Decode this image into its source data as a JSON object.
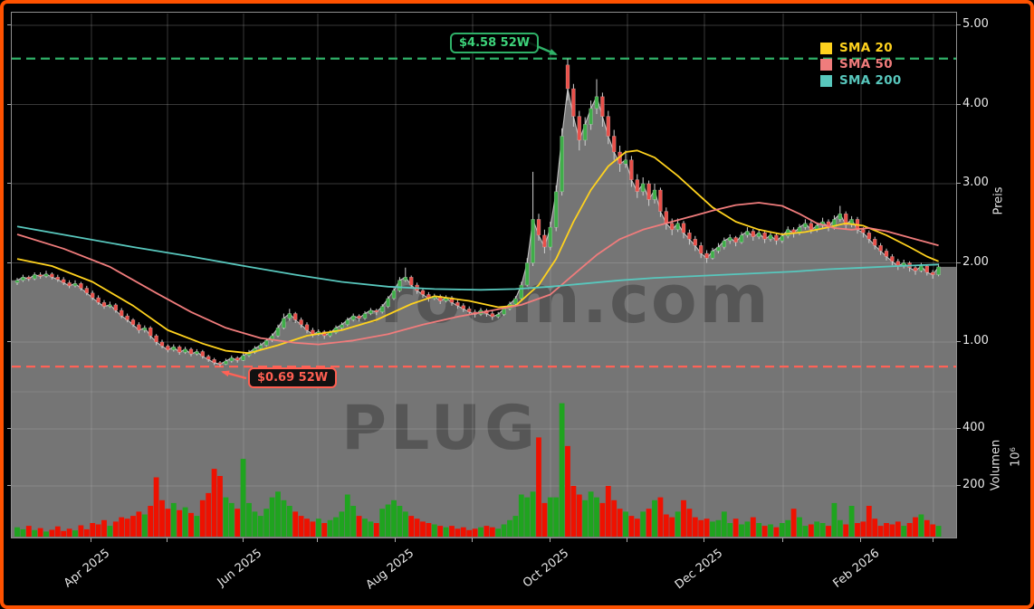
{
  "watermark": {
    "site": "chartroom.com",
    "ticker": "PLUG"
  },
  "legend": {
    "items": [
      {
        "label": "SMA 20",
        "color": "#ffd21e"
      },
      {
        "label": "SMA 50",
        "color": "#f07c7c"
      },
      {
        "label": "SMA 200",
        "color": "#58c7bd"
      }
    ]
  },
  "annotations": {
    "high_label": "$4.58 52W",
    "low_label": "$0.69 52W"
  },
  "axes": {
    "price_label": "Preis",
    "volume_label": "Volumen",
    "volume_unit": "10⁶",
    "price_ticks": [
      {
        "value": 5,
        "label": "5.00"
      },
      {
        "value": 4,
        "label": "4.00"
      },
      {
        "value": 3,
        "label": "3.00"
      },
      {
        "value": 2,
        "label": "2.00"
      },
      {
        "value": 1,
        "label": "1.00"
      }
    ],
    "volume_ticks": [
      {
        "value": 400,
        "label": "400"
      },
      {
        "value": 200,
        "label": "200"
      }
    ],
    "x_ticks": [
      {
        "x": 88,
        "label": "Apr 2025"
      },
      {
        "x": 172,
        "label": ""
      },
      {
        "x": 256,
        "label": "Jun 2025"
      },
      {
        "x": 338,
        "label": ""
      },
      {
        "x": 424,
        "label": "Aug 2025"
      },
      {
        "x": 509,
        "label": ""
      },
      {
        "x": 595,
        "label": "Oct 2025"
      },
      {
        "x": 680,
        "label": ""
      },
      {
        "x": 765,
        "label": "Dec 2025"
      },
      {
        "x": 852,
        "label": ""
      },
      {
        "x": 938,
        "label": "Feb 2026"
      },
      {
        "x": 1018,
        "label": ""
      }
    ]
  },
  "colors": {
    "up": "#3fae49",
    "down": "#e8504a",
    "vol_up": "#1fa41f",
    "vol_down": "#ee1100",
    "fill": "#757575",
    "wick": "#cfcfcf",
    "sma20": "#ffd21e",
    "sma50": "#f07c7c",
    "sma200": "#58c7bd",
    "dash_high": "#2fb168",
    "dash_low": "#ff6256",
    "grid": "rgba(185,185,185,0.30)",
    "border": "#ff5200"
  },
  "chart_data": {
    "type": "candlestick",
    "symbol": "PLUG",
    "price_axis_label": "Preis",
    "volume_axis_label": "Volumen",
    "price_axis_ticks": [
      1.0,
      2.0,
      3.0,
      4.0,
      5.0
    ],
    "volume_axis_ticks_millions": [
      200,
      400
    ],
    "x_axis_months": [
      "Apr 2025",
      "Jun 2025",
      "Aug 2025",
      "Oct 2025",
      "Dec 2025",
      "Feb 2026"
    ],
    "high_52w": 4.58,
    "low_52w": 0.69,
    "legend": [
      "SMA 20",
      "SMA 50",
      "SMA 200"
    ],
    "candles_ohlc": [
      [
        1.75,
        1.81,
        1.72,
        1.78
      ],
      [
        1.78,
        1.85,
        1.76,
        1.82
      ],
      [
        1.82,
        1.84,
        1.77,
        1.8
      ],
      [
        1.8,
        1.88,
        1.78,
        1.85
      ],
      [
        1.85,
        1.88,
        1.8,
        1.83
      ],
      [
        1.83,
        1.9,
        1.81,
        1.86
      ],
      [
        1.86,
        1.88,
        1.79,
        1.82
      ],
      [
        1.82,
        1.85,
        1.76,
        1.79
      ],
      [
        1.79,
        1.82,
        1.72,
        1.75
      ],
      [
        1.75,
        1.78,
        1.68,
        1.71
      ],
      [
        1.71,
        1.78,
        1.69,
        1.74
      ],
      [
        1.74,
        1.76,
        1.65,
        1.68
      ],
      [
        1.68,
        1.71,
        1.59,
        1.62
      ],
      [
        1.62,
        1.65,
        1.53,
        1.56
      ],
      [
        1.56,
        1.59,
        1.47,
        1.5
      ],
      [
        1.5,
        1.53,
        1.42,
        1.45
      ],
      [
        1.45,
        1.51,
        1.43,
        1.47
      ],
      [
        1.47,
        1.49,
        1.37,
        1.4
      ],
      [
        1.4,
        1.43,
        1.3,
        1.33
      ],
      [
        1.33,
        1.36,
        1.25,
        1.28
      ],
      [
        1.28,
        1.3,
        1.19,
        1.22
      ],
      [
        1.22,
        1.25,
        1.11,
        1.15
      ],
      [
        1.15,
        1.21,
        1.12,
        1.18
      ],
      [
        1.18,
        1.2,
        1.04,
        1.08
      ],
      [
        1.08,
        1.1,
        0.96,
        1.0
      ],
      [
        1.0,
        1.03,
        0.92,
        0.95
      ],
      [
        0.95,
        0.97,
        0.87,
        0.9
      ],
      [
        0.9,
        0.97,
        0.88,
        0.94
      ],
      [
        0.94,
        0.96,
        0.84,
        0.87
      ],
      [
        0.87,
        0.94,
        0.85,
        0.91
      ],
      [
        0.91,
        0.93,
        0.82,
        0.85
      ],
      [
        0.85,
        0.91,
        0.83,
        0.88
      ],
      [
        0.88,
        0.9,
        0.79,
        0.82
      ],
      [
        0.82,
        0.84,
        0.75,
        0.78
      ],
      [
        0.78,
        0.8,
        0.71,
        0.74
      ],
      [
        0.74,
        0.76,
        0.69,
        0.72
      ],
      [
        0.72,
        0.79,
        0.71,
        0.76
      ],
      [
        0.76,
        0.83,
        0.74,
        0.8
      ],
      [
        0.8,
        0.82,
        0.74,
        0.77
      ],
      [
        0.77,
        0.86,
        0.76,
        0.83
      ],
      [
        0.83,
        0.9,
        0.81,
        0.87
      ],
      [
        0.87,
        0.95,
        0.85,
        0.92
      ],
      [
        0.92,
        0.99,
        0.9,
        0.96
      ],
      [
        0.96,
        1.05,
        0.94,
        1.02
      ],
      [
        1.02,
        1.11,
        1.0,
        1.08
      ],
      [
        1.08,
        1.22,
        1.06,
        1.18
      ],
      [
        1.18,
        1.36,
        1.16,
        1.3
      ],
      [
        1.3,
        1.42,
        1.27,
        1.36
      ],
      [
        1.36,
        1.38,
        1.24,
        1.28
      ],
      [
        1.28,
        1.31,
        1.18,
        1.22
      ],
      [
        1.22,
        1.25,
        1.11,
        1.15
      ],
      [
        1.15,
        1.18,
        1.06,
        1.1
      ],
      [
        1.1,
        1.16,
        1.08,
        1.13
      ],
      [
        1.13,
        1.15,
        1.04,
        1.08
      ],
      [
        1.08,
        1.15,
        1.06,
        1.12
      ],
      [
        1.12,
        1.21,
        1.1,
        1.18
      ],
      [
        1.18,
        1.25,
        1.16,
        1.22
      ],
      [
        1.22,
        1.31,
        1.2,
        1.28
      ],
      [
        1.28,
        1.36,
        1.26,
        1.33
      ],
      [
        1.33,
        1.35,
        1.26,
        1.3
      ],
      [
        1.3,
        1.39,
        1.28,
        1.36
      ],
      [
        1.36,
        1.43,
        1.34,
        1.4
      ],
      [
        1.4,
        1.42,
        1.34,
        1.38
      ],
      [
        1.38,
        1.48,
        1.36,
        1.45
      ],
      [
        1.45,
        1.58,
        1.43,
        1.55
      ],
      [
        1.55,
        1.68,
        1.53,
        1.65
      ],
      [
        1.65,
        1.82,
        1.63,
        1.78
      ],
      [
        1.78,
        1.94,
        1.76,
        1.82
      ],
      [
        1.82,
        1.84,
        1.68,
        1.72
      ],
      [
        1.72,
        1.75,
        1.61,
        1.65
      ],
      [
        1.65,
        1.68,
        1.56,
        1.6
      ],
      [
        1.6,
        1.63,
        1.51,
        1.55
      ],
      [
        1.55,
        1.61,
        1.53,
        1.58
      ],
      [
        1.58,
        1.6,
        1.48,
        1.52
      ],
      [
        1.52,
        1.59,
        1.5,
        1.56
      ],
      [
        1.56,
        1.58,
        1.46,
        1.5
      ],
      [
        1.5,
        1.53,
        1.42,
        1.46
      ],
      [
        1.46,
        1.49,
        1.38,
        1.42
      ],
      [
        1.42,
        1.45,
        1.34,
        1.38
      ],
      [
        1.38,
        1.41,
        1.31,
        1.35
      ],
      [
        1.35,
        1.43,
        1.33,
        1.4
      ],
      [
        1.4,
        1.42,
        1.32,
        1.36
      ],
      [
        1.36,
        1.39,
        1.28,
        1.32
      ],
      [
        1.32,
        1.38,
        1.3,
        1.35
      ],
      [
        1.35,
        1.45,
        1.33,
        1.42
      ],
      [
        1.42,
        1.51,
        1.4,
        1.48
      ],
      [
        1.48,
        1.58,
        1.46,
        1.55
      ],
      [
        1.55,
        1.76,
        1.53,
        1.72
      ],
      [
        1.72,
        2.06,
        1.7,
        2.0
      ],
      [
        2.0,
        3.15,
        1.96,
        2.55
      ],
      [
        2.55,
        2.62,
        2.28,
        2.35
      ],
      [
        2.35,
        2.42,
        2.12,
        2.2
      ],
      [
        2.2,
        2.52,
        2.16,
        2.45
      ],
      [
        2.45,
        2.98,
        2.4,
        2.9
      ],
      [
        2.9,
        3.7,
        2.85,
        3.6
      ],
      [
        4.5,
        4.58,
        4.05,
        4.2
      ],
      [
        4.2,
        4.26,
        3.72,
        3.85
      ],
      [
        3.85,
        3.92,
        3.42,
        3.55
      ],
      [
        3.55,
        3.84,
        3.48,
        3.75
      ],
      [
        3.75,
        4.05,
        3.68,
        3.95
      ],
      [
        3.95,
        4.32,
        3.88,
        4.1
      ],
      [
        4.1,
        4.15,
        3.72,
        3.85
      ],
      [
        3.85,
        3.92,
        3.5,
        3.6
      ],
      [
        3.6,
        3.68,
        3.3,
        3.4
      ],
      [
        3.4,
        3.48,
        3.15,
        3.25
      ],
      [
        3.25,
        3.42,
        3.2,
        3.3
      ],
      [
        3.3,
        3.35,
        2.96,
        3.05
      ],
      [
        3.05,
        3.12,
        2.82,
        2.9
      ],
      [
        2.9,
        3.08,
        2.85,
        3.0
      ],
      [
        3.0,
        3.04,
        2.72,
        2.8
      ],
      [
        2.8,
        3.0,
        2.75,
        2.92
      ],
      [
        2.92,
        2.95,
        2.58,
        2.65
      ],
      [
        2.65,
        2.7,
        2.42,
        2.5
      ],
      [
        2.5,
        2.56,
        2.35,
        2.42
      ],
      [
        2.42,
        2.56,
        2.39,
        2.5
      ],
      [
        2.5,
        2.53,
        2.31,
        2.38
      ],
      [
        2.38,
        2.42,
        2.23,
        2.3
      ],
      [
        2.3,
        2.34,
        2.15,
        2.22
      ],
      [
        2.22,
        2.26,
        2.06,
        2.12
      ],
      [
        2.12,
        2.16,
        2.0,
        2.06
      ],
      [
        2.06,
        2.19,
        2.04,
        2.15
      ],
      [
        2.15,
        2.25,
        2.12,
        2.2
      ],
      [
        2.2,
        2.32,
        2.17,
        2.28
      ],
      [
        2.28,
        2.36,
        2.24,
        2.32
      ],
      [
        2.32,
        2.34,
        2.21,
        2.26
      ],
      [
        2.26,
        2.39,
        2.24,
        2.35
      ],
      [
        2.35,
        2.45,
        2.32,
        2.4
      ],
      [
        2.4,
        2.43,
        2.28,
        2.33
      ],
      [
        2.33,
        2.42,
        2.3,
        2.38
      ],
      [
        2.38,
        2.41,
        2.25,
        2.3
      ],
      [
        2.3,
        2.39,
        2.27,
        2.35
      ],
      [
        2.35,
        2.38,
        2.23,
        2.28
      ],
      [
        2.28,
        2.38,
        2.25,
        2.34
      ],
      [
        2.34,
        2.46,
        2.31,
        2.42
      ],
      [
        2.42,
        2.45,
        2.32,
        2.38
      ],
      [
        2.38,
        2.49,
        2.35,
        2.45
      ],
      [
        2.45,
        2.55,
        2.42,
        2.5
      ],
      [
        2.5,
        2.53,
        2.37,
        2.42
      ],
      [
        2.42,
        2.51,
        2.39,
        2.47
      ],
      [
        2.47,
        2.57,
        2.44,
        2.52
      ],
      [
        2.52,
        2.55,
        2.4,
        2.45
      ],
      [
        2.45,
        2.6,
        2.42,
        2.55
      ],
      [
        2.55,
        2.72,
        2.52,
        2.62
      ],
      [
        2.62,
        2.65,
        2.43,
        2.48
      ],
      [
        2.48,
        2.59,
        2.45,
        2.55
      ],
      [
        2.55,
        2.58,
        2.37,
        2.42
      ],
      [
        2.42,
        2.45,
        2.32,
        2.38
      ],
      [
        2.38,
        2.41,
        2.25,
        2.3
      ],
      [
        2.3,
        2.33,
        2.17,
        2.22
      ],
      [
        2.22,
        2.25,
        2.1,
        2.15
      ],
      [
        2.15,
        2.18,
        2.03,
        2.08
      ],
      [
        2.08,
        2.11,
        1.97,
        2.02
      ],
      [
        2.02,
        2.05,
        1.91,
        1.96
      ],
      [
        1.96,
        2.04,
        1.93,
        2.0
      ],
      [
        2.0,
        2.02,
        1.89,
        1.94
      ],
      [
        1.94,
        1.97,
        1.85,
        1.9
      ],
      [
        1.9,
        2.0,
        1.88,
        1.96
      ],
      [
        1.96,
        1.98,
        1.84,
        1.88
      ],
      [
        1.88,
        1.91,
        1.8,
        1.85
      ],
      [
        1.85,
        1.99,
        1.83,
        1.95
      ]
    ],
    "volumes_millions": [
      55,
      48,
      60,
      45,
      52,
      40,
      46,
      58,
      42,
      50,
      44,
      62,
      48,
      70,
      65,
      80,
      60,
      75,
      90,
      85,
      95,
      110,
      100,
      130,
      230,
      150,
      120,
      140,
      115,
      125,
      105,
      95,
      150,
      175,
      260,
      235,
      160,
      140,
      120,
      295,
      140,
      110,
      95,
      120,
      160,
      180,
      150,
      130,
      110,
      95,
      85,
      75,
      85,
      70,
      80,
      90,
      110,
      170,
      130,
      95,
      85,
      75,
      70,
      120,
      135,
      150,
      130,
      110,
      95,
      85,
      75,
      70,
      65,
      60,
      55,
      60,
      50,
      55,
      45,
      50,
      55,
      60,
      55,
      50,
      65,
      80,
      95,
      170,
      160,
      180,
      370,
      140,
      160,
      160,
      490,
      340,
      200,
      170,
      150,
      180,
      160,
      140,
      200,
      150,
      120,
      110,
      95,
      85,
      110,
      120,
      150,
      160,
      100,
      90,
      110,
      150,
      120,
      90,
      80,
      85,
      75,
      80,
      110,
      70,
      85,
      65,
      75,
      90,
      70,
      60,
      65,
      55,
      70,
      80,
      120,
      90,
      60,
      65,
      75,
      70,
      60,
      140,
      80,
      65,
      130,
      70,
      75,
      130,
      85,
      60,
      70,
      65,
      75,
      60,
      70,
      90,
      100,
      80,
      65,
      60
    ],
    "sma20_keypoints": [
      [
        0,
        2.05
      ],
      [
        6,
        1.96
      ],
      [
        13,
        1.76
      ],
      [
        20,
        1.46
      ],
      [
        26,
        1.15
      ],
      [
        32,
        0.98
      ],
      [
        36,
        0.89
      ],
      [
        40,
        0.86
      ],
      [
        45,
        0.96
      ],
      [
        50,
        1.08
      ],
      [
        56,
        1.15
      ],
      [
        62,
        1.28
      ],
      [
        68,
        1.48
      ],
      [
        72,
        1.58
      ],
      [
        78,
        1.52
      ],
      [
        83,
        1.44
      ],
      [
        86,
        1.46
      ],
      [
        90,
        1.72
      ],
      [
        93,
        2.05
      ],
      [
        96,
        2.52
      ],
      [
        99,
        2.92
      ],
      [
        102,
        3.22
      ],
      [
        105,
        3.4
      ],
      [
        107,
        3.42
      ],
      [
        110,
        3.33
      ],
      [
        114,
        3.1
      ],
      [
        117,
        2.9
      ],
      [
        120,
        2.7
      ],
      [
        124,
        2.52
      ],
      [
        128,
        2.42
      ],
      [
        132,
        2.36
      ],
      [
        136,
        2.39
      ],
      [
        140,
        2.45
      ],
      [
        143,
        2.5
      ],
      [
        146,
        2.47
      ],
      [
        150,
        2.35
      ],
      [
        154,
        2.2
      ],
      [
        157,
        2.08
      ],
      [
        159,
        2.02
      ]
    ],
    "sma50_keypoints": [
      [
        0,
        2.36
      ],
      [
        8,
        2.18
      ],
      [
        16,
        1.95
      ],
      [
        24,
        1.62
      ],
      [
        30,
        1.38
      ],
      [
        36,
        1.18
      ],
      [
        42,
        1.05
      ],
      [
        48,
        0.99
      ],
      [
        52,
        0.97
      ],
      [
        58,
        1.02
      ],
      [
        64,
        1.1
      ],
      [
        70,
        1.22
      ],
      [
        76,
        1.32
      ],
      [
        82,
        1.4
      ],
      [
        87,
        1.47
      ],
      [
        92,
        1.6
      ],
      [
        96,
        1.85
      ],
      [
        100,
        2.1
      ],
      [
        104,
        2.3
      ],
      [
        108,
        2.42
      ],
      [
        112,
        2.5
      ],
      [
        116,
        2.58
      ],
      [
        120,
        2.66
      ],
      [
        124,
        2.73
      ],
      [
        128,
        2.76
      ],
      [
        132,
        2.72
      ],
      [
        135,
        2.62
      ],
      [
        138,
        2.5
      ],
      [
        141,
        2.44
      ],
      [
        144,
        2.42
      ],
      [
        147,
        2.44
      ],
      [
        150,
        2.4
      ],
      [
        153,
        2.34
      ],
      [
        156,
        2.28
      ],
      [
        159,
        2.22
      ]
    ],
    "sma200_keypoints": [
      [
        0,
        2.46
      ],
      [
        10,
        2.33
      ],
      [
        20,
        2.2
      ],
      [
        30,
        2.08
      ],
      [
        40,
        1.95
      ],
      [
        48,
        1.85
      ],
      [
        56,
        1.76
      ],
      [
        64,
        1.7
      ],
      [
        72,
        1.67
      ],
      [
        80,
        1.66
      ],
      [
        86,
        1.67
      ],
      [
        92,
        1.7
      ],
      [
        98,
        1.74
      ],
      [
        104,
        1.78
      ],
      [
        110,
        1.81
      ],
      [
        116,
        1.83
      ],
      [
        122,
        1.85
      ],
      [
        128,
        1.87
      ],
      [
        134,
        1.89
      ],
      [
        140,
        1.92
      ],
      [
        146,
        1.94
      ],
      [
        152,
        1.96
      ],
      [
        159,
        1.98
      ]
    ]
  }
}
